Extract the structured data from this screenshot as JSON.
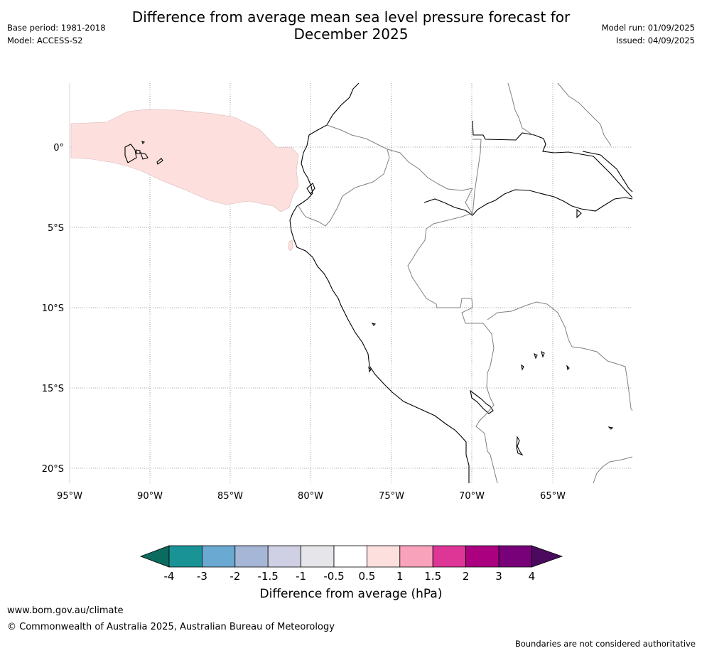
{
  "header": {
    "title_line1": "Difference from average mean sea level pressure forecast for",
    "title_line2": "December 2025",
    "base_period": "Base period: 1981-2018",
    "model": "Model: ACCESS-S2",
    "model_run": "Model run: 01/09/2025",
    "issued": "Issued: 04/09/2025"
  },
  "map": {
    "lon_ticks": [
      "95°W",
      "90°W",
      "85°W",
      "80°W",
      "75°W",
      "70°W",
      "65°W"
    ],
    "lat_ticks": [
      "0°",
      "5°S",
      "10°S",
      "15°S",
      "20°S"
    ],
    "anomaly_fill_color": "#fde0de",
    "coast_color": "#000000",
    "border_color": "#808080",
    "grid_color": "#888888"
  },
  "colorbar": {
    "title": "Difference from average (hPa)",
    "labels": [
      "-4",
      "-3",
      "-2",
      "-1.5",
      "-1",
      "-0.5",
      "0.5",
      "1",
      "1.5",
      "2",
      "3",
      "4"
    ],
    "low_extend_color": "#0b6b5e",
    "high_extend_color": "#4b0a5e",
    "colors": [
      "#1a9396",
      "#6aa9d2",
      "#a6b6d6",
      "#cfd0e4",
      "#e6e6ea",
      "#ffffff",
      "#fde0de",
      "#f9a2bb",
      "#dd3697",
      "#ab0080",
      "#780078"
    ]
  },
  "footer": {
    "site": "www.bom.gov.au/climate",
    "copyright": "© Commonwealth of Australia 2025, Australian Bureau of Meteorology",
    "disclaimer": "Boundaries are not considered authoritative"
  }
}
